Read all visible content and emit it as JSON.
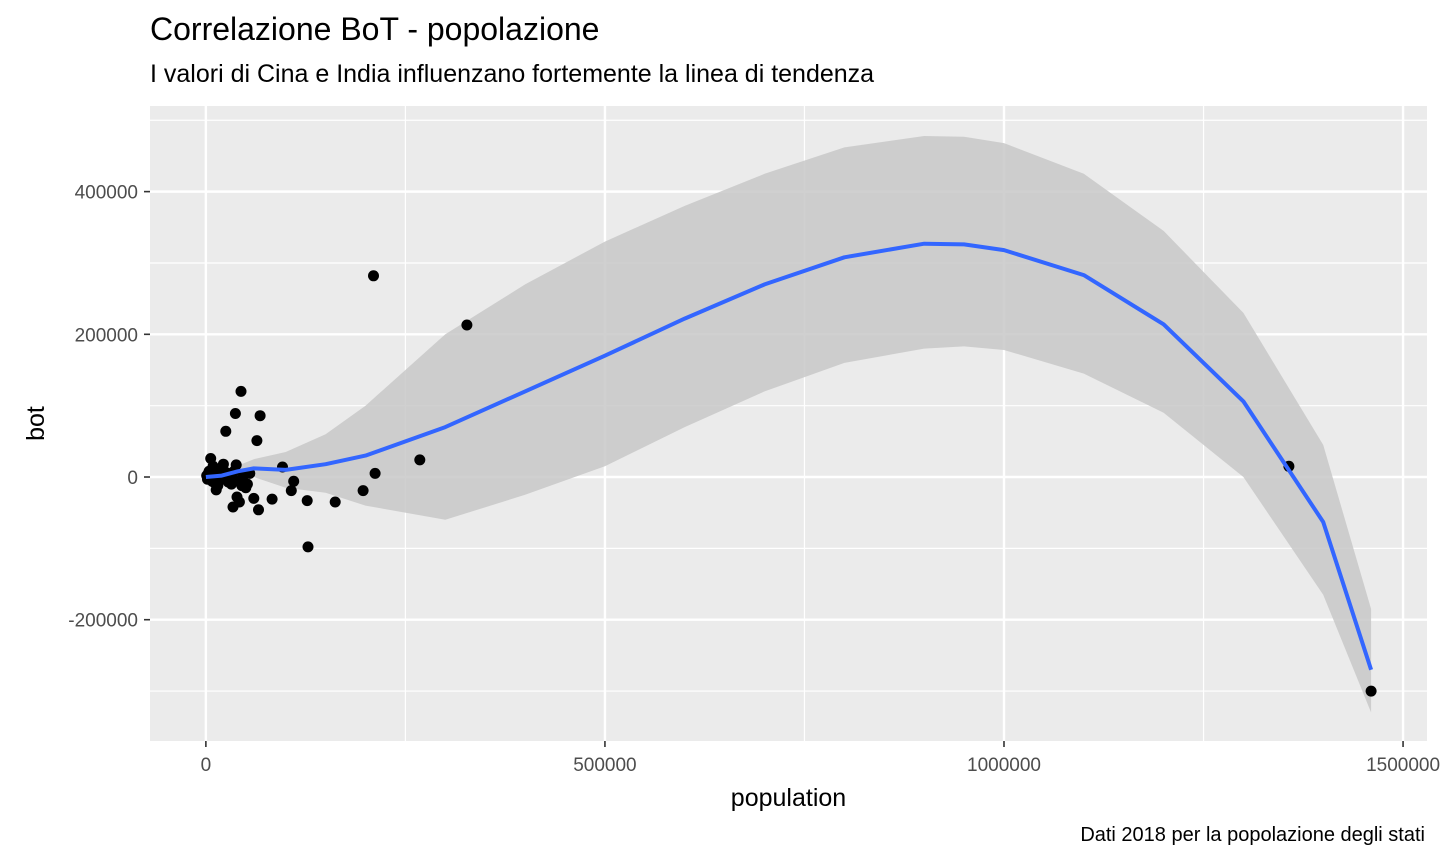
{
  "chart_data": {
    "type": "scatter",
    "title": "Correlazione BoT - popolazione",
    "subtitle": "I valori di Cina e India influenzano fortemente la linea di tendenza",
    "caption": "Dati 2018 per la popolazione degli stati",
    "xlabel": "population",
    "ylabel": "bot",
    "xlim": [
      -70000,
      1530000
    ],
    "ylim": [
      -370000,
      520000
    ],
    "x_ticks": [
      0,
      500000,
      1000000,
      1500000
    ],
    "x_tick_labels": [
      "0",
      "500000",
      "1000000",
      "1500000"
    ],
    "y_ticks": [
      -200000,
      0,
      200000,
      400000
    ],
    "y_tick_labels": [
      "-200000",
      "0",
      "200000",
      "400000"
    ],
    "grid": true,
    "colors": {
      "panel": "#ebebeb",
      "grid": "#ffffff",
      "points": "#000000",
      "trend": "#3366ff",
      "band": "#c8c8c8"
    },
    "points": [
      {
        "x": 1000,
        "y": 2000
      },
      {
        "x": 2000,
        "y": -3000
      },
      {
        "x": 3000,
        "y": 5000
      },
      {
        "x": 4000,
        "y": 8000
      },
      {
        "x": 5000,
        "y": -1000
      },
      {
        "x": 6000,
        "y": 26000
      },
      {
        "x": 7000,
        "y": 3000
      },
      {
        "x": 8000,
        "y": -6000
      },
      {
        "x": 9000,
        "y": 15000
      },
      {
        "x": 10000,
        "y": 1000
      },
      {
        "x": 11000,
        "y": -8000
      },
      {
        "x": 12000,
        "y": 10000
      },
      {
        "x": 13000,
        "y": -18000
      },
      {
        "x": 14000,
        "y": 4000
      },
      {
        "x": 15000,
        "y": -12000
      },
      {
        "x": 16000,
        "y": 7000
      },
      {
        "x": 18000,
        "y": -4000
      },
      {
        "x": 20000,
        "y": 12000
      },
      {
        "x": 22000,
        "y": 18000
      },
      {
        "x": 24000,
        "y": -2000
      },
      {
        "x": 25000,
        "y": 64000
      },
      {
        "x": 26000,
        "y": 6000
      },
      {
        "x": 28000,
        "y": -7000
      },
      {
        "x": 30000,
        "y": 3000
      },
      {
        "x": 32000,
        "y": -10000
      },
      {
        "x": 34000,
        "y": -42000
      },
      {
        "x": 36000,
        "y": 9000
      },
      {
        "x": 37000,
        "y": 89000
      },
      {
        "x": 38000,
        "y": 17000
      },
      {
        "x": 39000,
        "y": -28000
      },
      {
        "x": 40000,
        "y": -5000
      },
      {
        "x": 42000,
        "y": -35000
      },
      {
        "x": 44000,
        "y": 120000
      },
      {
        "x": 45000,
        "y": -12000
      },
      {
        "x": 47000,
        "y": 2000
      },
      {
        "x": 50000,
        "y": -15000
      },
      {
        "x": 52000,
        "y": -10000
      },
      {
        "x": 55000,
        "y": 5000
      },
      {
        "x": 60000,
        "y": -30000
      },
      {
        "x": 64000,
        "y": 51000
      },
      {
        "x": 66000,
        "y": -46000
      },
      {
        "x": 68000,
        "y": 86000
      },
      {
        "x": 83000,
        "y": -31000
      },
      {
        "x": 96000,
        "y": 14000
      },
      {
        "x": 107000,
        "y": -19000
      },
      {
        "x": 110000,
        "y": -6000
      },
      {
        "x": 127000,
        "y": -33000
      },
      {
        "x": 128000,
        "y": -98000
      },
      {
        "x": 162000,
        "y": -35000
      },
      {
        "x": 197000,
        "y": -19000
      },
      {
        "x": 210000,
        "y": 282000
      },
      {
        "x": 212000,
        "y": 5000
      },
      {
        "x": 268000,
        "y": 24000
      },
      {
        "x": 327000,
        "y": 213000
      },
      {
        "x": 1357000,
        "y": 15000
      },
      {
        "x": 1460000,
        "y": -300000
      }
    ],
    "trend": {
      "x": [
        0,
        20000,
        40000,
        60000,
        100000,
        150000,
        200000,
        300000,
        400000,
        500000,
        600000,
        700000,
        800000,
        900000,
        950000,
        1000000,
        1100000,
        1200000,
        1300000,
        1400000,
        1460000
      ],
      "y": [
        0,
        2000,
        8000,
        12000,
        10000,
        18000,
        30000,
        70000,
        120000,
        170000,
        222000,
        270000,
        308000,
        327000,
        326000,
        318000,
        283000,
        214000,
        106000,
        -63000,
        -270000
      ],
      "upper": [
        2000,
        5000,
        16000,
        25000,
        35000,
        60000,
        100000,
        200000,
        270000,
        330000,
        380000,
        425000,
        462000,
        478000,
        477000,
        468000,
        425000,
        345000,
        230000,
        45000,
        -185000
      ],
      "lower": [
        -2000,
        -2000,
        -1000,
        0,
        -15000,
        -22000,
        -40000,
        -60000,
        -25000,
        15000,
        70000,
        120000,
        160000,
        180000,
        183000,
        178000,
        145000,
        90000,
        0,
        -165000,
        -330000
      ]
    }
  }
}
